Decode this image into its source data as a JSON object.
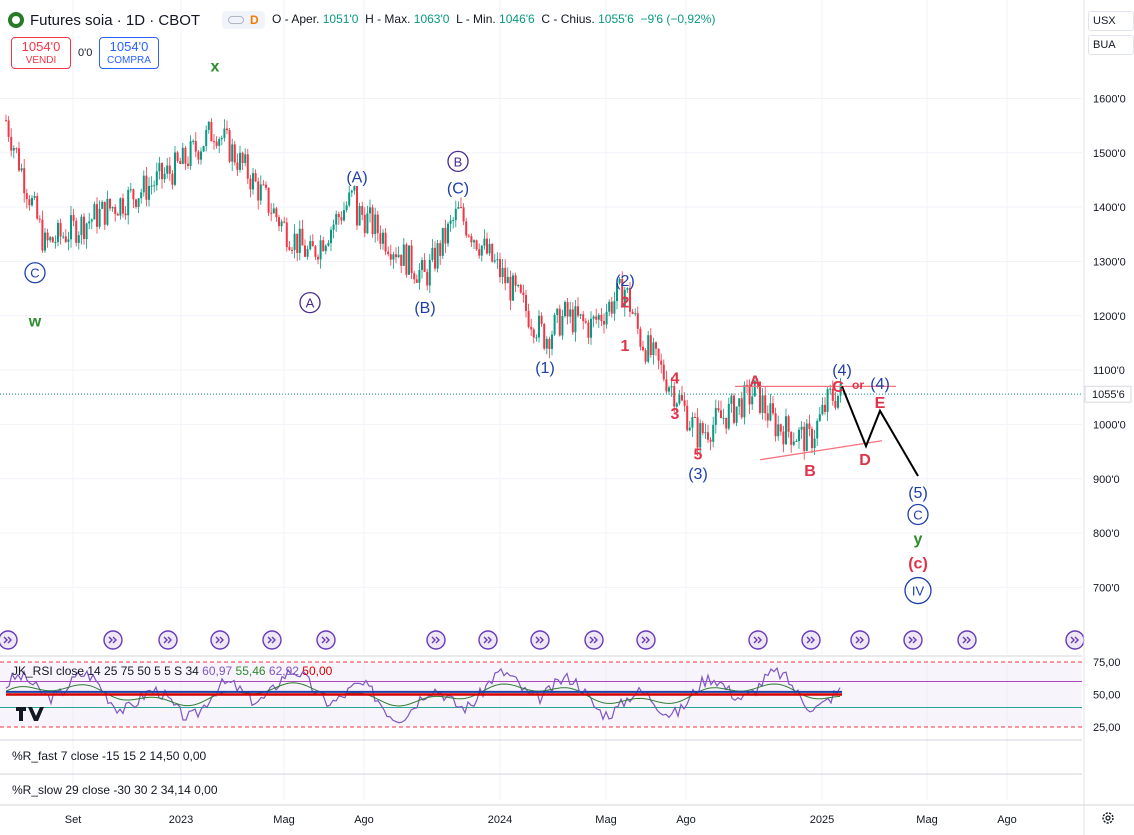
{
  "header": {
    "title": "Futures soia · 1D · CBOT",
    "pill_letter": "D",
    "ohlc": {
      "open_label": "O",
      "open_name": "Aper.",
      "open": "1051'0",
      "high_label": "H",
      "high_name": "Max.",
      "high": "1063'0",
      "low_label": "L",
      "low_name": "Min.",
      "low": "1046'6",
      "close_label": "C",
      "close_name": "Chius.",
      "close": "1055'6",
      "change": "−9'6 (−0,92%)"
    }
  },
  "trade": {
    "sell_price": "1054'0",
    "sell_label": "VENDI",
    "spread": "0'0",
    "buy_price": "1054'0",
    "buy_label": "COMPRA"
  },
  "right_panel": {
    "currency": "USX",
    "unit": "BUA"
  },
  "colors": {
    "up": "#089981",
    "down": "#f23645",
    "wave_blue": "#1e3fa8",
    "wave_red": "#e0334a",
    "wave_green": "#2e8b2e",
    "trend_red": "#f4747f",
    "projection": "#000000",
    "rsi_line": "#7e57c2",
    "rsi_mid": "#d50000",
    "rsi_ma": "#1e3fa8"
  },
  "chart_data": {
    "type": "candlestick",
    "title": "Futures soia · 1D · CBOT",
    "x_ticks": [
      "Set",
      "2023",
      "Mag",
      "Ago",
      "2024",
      "Mag",
      "Ago",
      "2025",
      "Mag",
      "Ago"
    ],
    "y_ticks": [
      "1600'0",
      "1500'0",
      "1400'0",
      "1300'0",
      "1200'0",
      "1100'0",
      "1000'0",
      "900'0",
      "800'0",
      "700'0"
    ],
    "ylim": [
      640,
      1680
    ],
    "last_price": "1055'6",
    "last_price_value": 1055.75,
    "price_path": [
      {
        "t": "2022-08",
        "v": 1560
      },
      {
        "t": "2022-10",
        "v": 1330
      },
      {
        "t": "2022-12",
        "v": 1440
      },
      {
        "t": "2023-01",
        "v": 1480
      },
      {
        "t": "2023-02",
        "v": 1545
      },
      {
        "t": "2023-04",
        "v": 1470
      },
      {
        "t": "2023-05",
        "v": 1360
      },
      {
        "t": "2023-06",
        "v": 1310
      },
      {
        "t": "2023-07",
        "v": 1430
      },
      {
        "t": "2023-08",
        "v": 1300
      },
      {
        "t": "2023-09",
        "v": 1390
      },
      {
        "t": "2023-10",
        "v": 1270
      },
      {
        "t": "2023-11",
        "v": 1390
      },
      {
        "t": "2023-12",
        "v": 1320
      },
      {
        "t": "2024-02",
        "v": 1160
      },
      {
        "t": "2024-03",
        "v": 1200
      },
      {
        "t": "2024-04",
        "v": 1180
      },
      {
        "t": "2024-05",
        "v": 1250
      },
      {
        "t": "2024-06",
        "v": 1160
      },
      {
        "t": "2024-07",
        "v": 1060
      },
      {
        "t": "2024-08",
        "v": 980
      },
      {
        "t": "2024-09",
        "v": 1030
      },
      {
        "t": "2024-10",
        "v": 1060
      },
      {
        "t": "2024-11",
        "v": 1000
      },
      {
        "t": "2024-12",
        "v": 970
      },
      {
        "t": "2025-01",
        "v": 1050
      },
      {
        "t": "2025-02",
        "v": 1056
      }
    ],
    "projection": [
      {
        "t": "2025-02",
        "v": 1070
      },
      {
        "t": "2025-03",
        "v": 960
      },
      {
        "t": "2025-03b",
        "v": 1025
      },
      {
        "t": "2025-04",
        "v": 905
      }
    ],
    "wave_labels": [
      {
        "text": "x",
        "color": "green",
        "t": "2023-02",
        "v": 1650
      },
      {
        "text": "C",
        "color": "blue",
        "circled": true,
        "t": "2022-09",
        "v": 1270
      },
      {
        "text": "w",
        "color": "green",
        "t": "2022-09",
        "v": 1180
      },
      {
        "text": "(A)",
        "color": "blue",
        "t": "2023-07",
        "v": 1445
      },
      {
        "text": "A",
        "color": "purple",
        "circled": true,
        "t": "2023-06",
        "v": 1215
      },
      {
        "text": "B",
        "color": "purple",
        "circled": true,
        "t": "2023-11",
        "v": 1475
      },
      {
        "text": "(C)",
        "color": "blue",
        "t": "2023-11",
        "v": 1425
      },
      {
        "text": "(B)",
        "color": "blue",
        "t": "2023-10",
        "v": 1205
      },
      {
        "text": "(2)",
        "color": "blue",
        "t": "2024-05",
        "v": 1255
      },
      {
        "text": "2",
        "color": "red",
        "t": "2024-05",
        "v": 1215
      },
      {
        "text": "(1)",
        "color": "blue",
        "t": "2024-02",
        "v": 1095
      },
      {
        "text": "1",
        "color": "red",
        "t": "2024-05",
        "v": 1135
      },
      {
        "text": "4",
        "color": "red",
        "t": "2024-07",
        "v": 1075
      },
      {
        "text": "3",
        "color": "red",
        "t": "2024-07",
        "v": 1010
      },
      {
        "text": "5",
        "color": "red",
        "t": "2024-08",
        "v": 935
      },
      {
        "text": "(3)",
        "color": "blue",
        "t": "2024-08",
        "v": 900
      },
      {
        "text": "A",
        "color": "red",
        "t": "2024-10",
        "v": 1070
      },
      {
        "text": "B",
        "color": "red",
        "t": "2024-12",
        "v": 905
      },
      {
        "text": "(4)",
        "color": "blue",
        "t": "2025-02",
        "v": 1090
      },
      {
        "text": "C",
        "color": "red",
        "t": "2025-02",
        "v": 1060
      },
      {
        "text": "or",
        "color": "red",
        "t": "2025-02",
        "v": 1065
      },
      {
        "text": "(4)",
        "color": "blue",
        "t": "2025-03",
        "v": 1065
      },
      {
        "text": "E",
        "color": "red",
        "t": "2025-03",
        "v": 1030
      },
      {
        "text": "D",
        "color": "red",
        "t": "2025-03",
        "v": 925
      },
      {
        "text": "(5)",
        "color": "blue",
        "t": "2025-04",
        "v": 865
      },
      {
        "text": "C",
        "color": "blue",
        "circled": true,
        "t": "2025-04",
        "v": 825
      },
      {
        "text": "y",
        "color": "green",
        "t": "2025-04",
        "v": 780
      },
      {
        "text": "(c)",
        "color": "red",
        "t": "2025-04",
        "v": 735
      },
      {
        "text": "IV",
        "color": "blue",
        "circled": true,
        "t": "2025-04",
        "v": 685
      }
    ],
    "resistance_line": {
      "from": {
        "t": "2024-09",
        "v": 1070
      },
      "to": {
        "t": "2025-03",
        "v": 1070
      }
    },
    "support_line": {
      "from": {
        "t": "2024-10",
        "v": 935
      },
      "to": {
        "t": "2025-03",
        "v": 970
      }
    },
    "grid": true
  },
  "indicators": {
    "rsi": {
      "label": "JK_RSI",
      "params": "close 14 25 75 50 5 5 S 34",
      "v1": "60,97",
      "v2": "55,46",
      "v3": "62,92",
      "v4": "50,00",
      "y_ticks": [
        "75,00",
        "50,00",
        "25,00"
      ],
      "levels": [
        75,
        60,
        50,
        40,
        25
      ]
    },
    "r_fast": {
      "label": "%R_fast",
      "params": "7 close -15 15 2",
      "v1": "14,50",
      "v2": "0,00"
    },
    "r_slow": {
      "label": "%R_slow",
      "params": "29 close -30 30 2",
      "v1": "34,14",
      "v2": "0,00"
    }
  }
}
